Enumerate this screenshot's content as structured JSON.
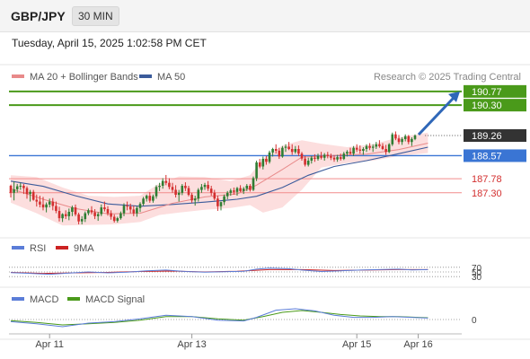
{
  "header": {
    "symbol": "GBP/JPY",
    "interval": "30 MIN"
  },
  "datetime": "Tuesday, April 15, 2025 1:02:58 PM CET",
  "legend": {
    "bollinger": "MA 20 + Bollinger Bands",
    "ma50": "MA 50",
    "copyright": "Research © 2025 Trading Central",
    "rsi": "RSI",
    "rsi_ma": "9MA",
    "macd": "MACD",
    "macd_signal": "MACD Signal"
  },
  "colors": {
    "bull": "#2e7d32",
    "bear": "#d32f2f",
    "band_fill": "#fcdede",
    "ma20": "#e88a8a",
    "ma50": "#3b5b9b",
    "target": "#4a9a1a",
    "pivot": "#3a75d4",
    "support": "#f28c8c",
    "arrow": "#2f67b8",
    "price_tag": "#333333",
    "rsi": "#5b7dd8",
    "rsi_ma": "#cc2222",
    "macd": "#5b7dd8",
    "macd_signal": "#4a9a1a"
  },
  "chart_data": {
    "type": "candlestick",
    "x_ticks": [
      "Apr 11",
      "Apr 13",
      "Apr 15",
      "Apr 16"
    ],
    "price_levels": [
      {
        "value": 190.77,
        "label": "190.77",
        "role": "target"
      },
      {
        "value": 190.3,
        "label": "190.30",
        "role": "target"
      },
      {
        "value": 189.26,
        "label": "189.26",
        "role": "last"
      },
      {
        "value": 188.57,
        "label": "188.57",
        "role": "pivot"
      },
      {
        "value": 187.78,
        "label": "187.78",
        "role": "support"
      },
      {
        "value": 187.3,
        "label": "187.30",
        "role": "support"
      }
    ],
    "candles": [
      [
        187.54,
        187.58,
        187.14,
        187.3
      ],
      [
        187.3,
        187.68,
        187.04,
        187.42
      ],
      [
        187.42,
        187.6,
        187.31,
        187.52
      ],
      [
        187.52,
        187.64,
        187.4,
        187.54
      ],
      [
        187.54,
        187.6,
        187.26,
        187.46
      ],
      [
        187.46,
        187.52,
        187.1,
        187.26
      ],
      [
        187.26,
        187.4,
        187.0,
        187.33
      ],
      [
        187.33,
        187.4,
        187.03,
        187.06
      ],
      [
        187.06,
        187.24,
        186.83,
        187.0
      ],
      [
        187.0,
        187.2,
        186.8,
        186.9
      ],
      [
        186.9,
        187.16,
        186.7,
        186.8
      ],
      [
        186.8,
        186.97,
        186.63,
        186.9
      ],
      [
        186.9,
        187.1,
        186.8,
        187.0
      ],
      [
        187.0,
        187.12,
        186.7,
        186.85
      ],
      [
        186.85,
        187.0,
        186.6,
        186.68
      ],
      [
        186.68,
        186.82,
        186.32,
        186.43
      ],
      [
        186.43,
        186.6,
        186.3,
        186.57
      ],
      [
        186.57,
        186.7,
        186.4,
        186.5
      ],
      [
        186.5,
        186.76,
        186.36,
        186.65
      ],
      [
        186.65,
        186.86,
        186.5,
        186.8
      ],
      [
        186.8,
        186.9,
        186.5,
        186.56
      ],
      [
        186.56,
        186.62,
        186.22,
        186.32
      ],
      [
        186.32,
        186.5,
        186.22,
        186.4
      ],
      [
        186.4,
        186.66,
        186.3,
        186.6
      ],
      [
        186.6,
        186.76,
        186.53,
        186.7
      ],
      [
        186.7,
        186.84,
        186.56,
        186.63
      ],
      [
        186.63,
        186.74,
        186.4,
        186.5
      ],
      [
        186.5,
        186.64,
        186.34,
        186.57
      ],
      [
        186.57,
        186.9,
        186.5,
        186.8
      ],
      [
        186.8,
        187.0,
        186.66,
        186.74
      ],
      [
        186.74,
        186.84,
        186.52,
        186.6
      ],
      [
        186.6,
        186.7,
        186.38,
        186.48
      ],
      [
        186.48,
        186.56,
        186.28,
        186.34
      ],
      [
        186.34,
        186.48,
        186.28,
        186.43
      ],
      [
        186.43,
        186.66,
        186.38,
        186.6
      ],
      [
        186.6,
        186.94,
        186.5,
        186.86
      ],
      [
        186.86,
        187.0,
        186.7,
        186.83
      ],
      [
        186.83,
        186.93,
        186.6,
        186.73
      ],
      [
        186.73,
        186.86,
        186.5,
        186.6
      ],
      [
        186.6,
        186.84,
        186.48,
        186.78
      ],
      [
        186.78,
        186.98,
        186.64,
        186.92
      ],
      [
        186.92,
        187.16,
        186.86,
        187.1
      ],
      [
        187.1,
        187.24,
        187.0,
        187.2
      ],
      [
        187.2,
        187.32,
        186.96,
        187.03
      ],
      [
        187.03,
        187.24,
        186.96,
        187.18
      ],
      [
        187.18,
        187.56,
        187.1,
        187.5
      ],
      [
        187.5,
        187.64,
        187.36,
        187.54
      ],
      [
        187.54,
        187.8,
        187.44,
        187.71
      ],
      [
        187.71,
        187.91,
        187.56,
        187.64
      ],
      [
        187.64,
        187.8,
        187.42,
        187.5
      ],
      [
        187.5,
        187.64,
        187.3,
        187.4
      ],
      [
        187.4,
        187.56,
        187.14,
        187.23
      ],
      [
        187.23,
        187.4,
        187.0,
        187.3
      ],
      [
        187.3,
        187.6,
        187.22,
        187.54
      ],
      [
        187.54,
        187.66,
        187.36,
        187.46
      ],
      [
        187.46,
        187.54,
        187.18,
        187.23
      ],
      [
        187.23,
        187.3,
        186.96,
        187.04
      ],
      [
        187.04,
        187.2,
        186.86,
        187.1
      ],
      [
        187.1,
        187.46,
        187.0,
        187.4
      ],
      [
        187.4,
        187.6,
        187.3,
        187.5
      ],
      [
        187.5,
        187.64,
        187.4,
        187.57
      ],
      [
        187.57,
        187.7,
        187.36,
        187.44
      ],
      [
        187.44,
        187.54,
        187.2,
        187.3
      ],
      [
        187.3,
        187.4,
        187.04,
        187.1
      ],
      [
        187.1,
        187.2,
        186.68,
        186.84
      ],
      [
        186.84,
        187.0,
        186.7,
        186.98
      ],
      [
        186.98,
        187.24,
        186.88,
        187.18
      ],
      [
        187.18,
        187.36,
        187.08,
        187.3
      ],
      [
        187.3,
        187.44,
        187.2,
        187.38
      ],
      [
        187.38,
        187.48,
        187.24,
        187.33
      ],
      [
        187.33,
        187.5,
        187.2,
        187.46
      ],
      [
        187.46,
        187.56,
        187.32,
        187.36
      ],
      [
        187.36,
        187.5,
        187.26,
        187.44
      ],
      [
        187.44,
        187.6,
        187.36,
        187.54
      ],
      [
        187.54,
        187.6,
        187.34,
        187.4
      ],
      [
        187.4,
        187.86,
        187.36,
        187.8
      ],
      [
        187.8,
        188.4,
        187.7,
        188.34
      ],
      [
        188.34,
        188.46,
        188.14,
        188.2
      ],
      [
        188.2,
        188.54,
        188.1,
        188.46
      ],
      [
        188.46,
        188.56,
        188.26,
        188.36
      ],
      [
        188.36,
        188.74,
        188.3,
        188.68
      ],
      [
        188.68,
        188.84,
        188.54,
        188.8
      ],
      [
        188.8,
        188.96,
        188.64,
        188.74
      ],
      [
        188.74,
        188.84,
        188.46,
        188.54
      ],
      [
        188.54,
        188.9,
        188.5,
        188.84
      ],
      [
        188.84,
        188.96,
        188.7,
        188.88
      ],
      [
        188.88,
        189.04,
        188.76,
        188.8
      ],
      [
        188.8,
        188.96,
        188.6,
        188.7
      ],
      [
        188.7,
        188.9,
        188.64,
        188.8
      ],
      [
        188.8,
        188.92,
        188.56,
        188.64
      ],
      [
        188.64,
        188.7,
        188.4,
        188.47
      ],
      [
        188.47,
        188.56,
        188.2,
        188.26
      ],
      [
        188.26,
        188.5,
        188.2,
        188.4
      ],
      [
        188.4,
        188.56,
        188.3,
        188.5
      ],
      [
        188.5,
        188.62,
        188.36,
        188.46
      ],
      [
        188.46,
        188.64,
        188.4,
        188.56
      ],
      [
        188.56,
        188.7,
        188.44,
        188.5
      ],
      [
        188.5,
        188.66,
        188.4,
        188.6
      ],
      [
        188.6,
        188.7,
        188.48,
        188.56
      ],
      [
        188.56,
        188.64,
        188.42,
        188.5
      ],
      [
        188.5,
        188.58,
        188.36,
        188.44
      ],
      [
        188.44,
        188.6,
        188.36,
        188.52
      ],
      [
        188.52,
        188.64,
        188.4,
        188.46
      ],
      [
        188.46,
        188.7,
        188.42,
        188.64
      ],
      [
        188.64,
        188.76,
        188.54,
        188.7
      ],
      [
        188.7,
        188.84,
        188.6,
        188.64
      ],
      [
        188.64,
        188.9,
        188.56,
        188.84
      ],
      [
        188.84,
        188.96,
        188.7,
        188.78
      ],
      [
        188.78,
        188.92,
        188.64,
        188.74
      ],
      [
        188.74,
        188.86,
        188.6,
        188.8
      ],
      [
        188.8,
        188.96,
        188.7,
        188.9
      ],
      [
        188.9,
        189.0,
        188.76,
        188.84
      ],
      [
        188.84,
        188.96,
        188.7,
        188.88
      ],
      [
        188.88,
        189.04,
        188.8,
        188.96
      ],
      [
        188.96,
        189.1,
        188.84,
        188.9
      ],
      [
        188.9,
        189.0,
        188.76,
        188.8
      ],
      [
        188.8,
        188.94,
        188.6,
        188.7
      ],
      [
        188.7,
        189.0,
        188.66,
        188.96
      ],
      [
        188.96,
        189.36,
        188.9,
        189.3
      ],
      [
        189.3,
        189.4,
        189.1,
        189.16
      ],
      [
        189.16,
        189.28,
        188.96,
        189.04
      ],
      [
        189.04,
        189.2,
        188.94,
        189.14
      ],
      [
        189.14,
        189.3,
        189.06,
        189.24
      ],
      [
        189.24,
        189.28,
        188.96,
        189.04
      ],
      [
        189.04,
        189.2,
        188.9,
        189.14
      ],
      [
        189.14,
        189.3,
        189.1,
        189.26
      ]
    ],
    "ma20": [
      [
        0,
        187.44
      ],
      [
        10,
        187.08
      ],
      [
        20,
        186.76
      ],
      [
        30,
        186.58
      ],
      [
        40,
        186.6
      ],
      [
        50,
        186.94
      ],
      [
        60,
        187.16
      ],
      [
        70,
        187.26
      ],
      [
        76,
        187.56
      ],
      [
        84,
        188.1
      ],
      [
        90,
        188.52
      ],
      [
        100,
        188.58
      ],
      [
        110,
        188.62
      ],
      [
        120,
        188.78
      ],
      [
        129,
        189.0
      ]
    ],
    "bb_upper": [
      [
        0,
        187.9
      ],
      [
        8,
        187.84
      ],
      [
        16,
        187.48
      ],
      [
        24,
        187.2
      ],
      [
        32,
        187.16
      ],
      [
        40,
        187.2
      ],
      [
        46,
        187.62
      ],
      [
        52,
        187.86
      ],
      [
        60,
        187.84
      ],
      [
        68,
        187.7
      ],
      [
        74,
        187.9
      ],
      [
        78,
        188.46
      ],
      [
        84,
        188.92
      ],
      [
        90,
        189.1
      ],
      [
        96,
        188.98
      ],
      [
        104,
        188.86
      ],
      [
        112,
        188.96
      ],
      [
        120,
        189.2
      ],
      [
        129,
        189.36
      ]
    ],
    "bb_lower": [
      [
        0,
        186.96
      ],
      [
        8,
        186.6
      ],
      [
        16,
        186.18
      ],
      [
        24,
        186.2
      ],
      [
        32,
        186.22
      ],
      [
        40,
        186.3
      ],
      [
        46,
        186.54
      ],
      [
        52,
        186.62
      ],
      [
        60,
        186.72
      ],
      [
        68,
        186.78
      ],
      [
        74,
        186.88
      ],
      [
        78,
        186.62
      ],
      [
        84,
        186.8
      ],
      [
        90,
        187.4
      ],
      [
        96,
        188.16
      ],
      [
        104,
        188.32
      ],
      [
        112,
        188.4
      ],
      [
        120,
        188.56
      ],
      [
        129,
        188.66
      ]
    ],
    "ma50": [
      [
        0,
        187.7
      ],
      [
        10,
        187.52
      ],
      [
        20,
        187.2
      ],
      [
        30,
        186.92
      ],
      [
        40,
        186.84
      ],
      [
        50,
        186.9
      ],
      [
        60,
        186.98
      ],
      [
        70,
        187.08
      ],
      [
        76,
        187.18
      ],
      [
        84,
        187.48
      ],
      [
        92,
        187.9
      ],
      [
        100,
        188.2
      ],
      [
        110,
        188.4
      ],
      [
        120,
        188.64
      ],
      [
        129,
        188.86
      ]
    ],
    "rsi": {
      "levels": [
        70,
        50,
        30
      ],
      "values": [
        [
          0,
          47
        ],
        [
          6,
          44
        ],
        [
          12,
          40
        ],
        [
          18,
          45
        ],
        [
          24,
          50
        ],
        [
          30,
          46
        ],
        [
          36,
          49
        ],
        [
          42,
          55
        ],
        [
          48,
          58
        ],
        [
          54,
          52
        ],
        [
          60,
          49
        ],
        [
          66,
          51
        ],
        [
          72,
          53
        ],
        [
          76,
          62
        ],
        [
          80,
          66
        ],
        [
          86,
          64
        ],
        [
          90,
          58
        ],
        [
          96,
          52
        ],
        [
          102,
          55
        ],
        [
          108,
          58
        ],
        [
          114,
          60
        ],
        [
          120,
          62
        ],
        [
          124,
          59
        ],
        [
          129,
          60
        ]
      ],
      "ma9": [
        [
          0,
          48
        ],
        [
          10,
          44
        ],
        [
          20,
          46
        ],
        [
          30,
          48
        ],
        [
          40,
          52
        ],
        [
          50,
          54
        ],
        [
          60,
          50
        ],
        [
          70,
          53
        ],
        [
          80,
          60
        ],
        [
          90,
          60
        ],
        [
          100,
          56
        ],
        [
          110,
          58
        ],
        [
          120,
          60
        ],
        [
          129,
          60
        ]
      ]
    },
    "macd": {
      "levels": [
        0
      ],
      "macd": [
        [
          0,
          -0.06
        ],
        [
          8,
          -0.12
        ],
        [
          16,
          -0.2
        ],
        [
          24,
          -0.1
        ],
        [
          32,
          -0.06
        ],
        [
          40,
          0.02
        ],
        [
          48,
          0.12
        ],
        [
          56,
          0.08
        ],
        [
          64,
          -0.02
        ],
        [
          72,
          -0.04
        ],
        [
          76,
          0.06
        ],
        [
          82,
          0.26
        ],
        [
          88,
          0.3
        ],
        [
          94,
          0.24
        ],
        [
          100,
          0.12
        ],
        [
          106,
          0.06
        ],
        [
          112,
          0.06
        ],
        [
          118,
          0.08
        ],
        [
          124,
          0.06
        ],
        [
          129,
          0.04
        ]
      ],
      "signal": [
        [
          0,
          -0.03
        ],
        [
          8,
          -0.08
        ],
        [
          16,
          -0.15
        ],
        [
          24,
          -0.12
        ],
        [
          32,
          -0.08
        ],
        [
          40,
          -0.02
        ],
        [
          48,
          0.08
        ],
        [
          56,
          0.08
        ],
        [
          64,
          0.02
        ],
        [
          72,
          -0.02
        ],
        [
          78,
          0.08
        ],
        [
          84,
          0.2
        ],
        [
          90,
          0.25
        ],
        [
          96,
          0.2
        ],
        [
          102,
          0.14
        ],
        [
          108,
          0.1
        ],
        [
          114,
          0.08
        ],
        [
          120,
          0.08
        ],
        [
          126,
          0.06
        ],
        [
          129,
          0.05
        ]
      ]
    }
  }
}
